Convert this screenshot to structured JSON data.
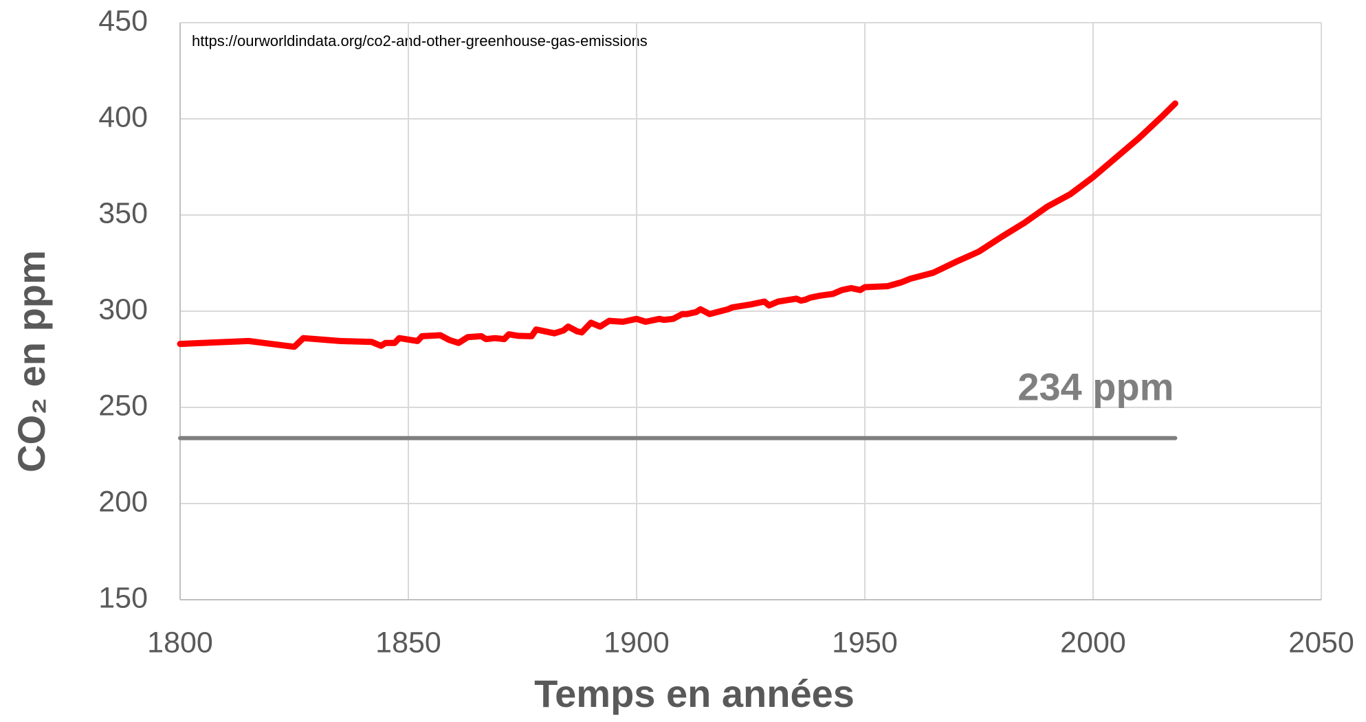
{
  "chart_data": {
    "type": "line",
    "source": "https://ourworldindata.org/co2-and-other-greenhouse-gas-emissions",
    "xlabel": "Temps en années",
    "ylabel": "CO₂ en ppm",
    "annotation": "234 ppm",
    "xlim": [
      1800,
      2050
    ],
    "xticks": [
      1800,
      1850,
      1900,
      1950,
      2000,
      2050
    ],
    "ylim": [
      150,
      450
    ],
    "yticks": [
      150,
      200,
      250,
      300,
      350,
      400,
      450
    ],
    "grid": true,
    "series": [
      {
        "color": "#ff0000",
        "x": [
          1800,
          1815,
          1825,
          1827,
          1835,
          1842,
          1844,
          1845,
          1847,
          1848,
          1852,
          1853,
          1857,
          1859,
          1861,
          1863,
          1866,
          1867,
          1869,
          1871,
          1872,
          1874,
          1877,
          1878,
          1882,
          1884,
          1885,
          1887,
          1888,
          1890,
          1892,
          1894,
          1897,
          1900,
          1902,
          1905,
          1906,
          1908,
          1910,
          1911,
          1913,
          1914,
          1916,
          1920,
          1921,
          1925,
          1928,
          1929,
          1931,
          1935,
          1936,
          1937,
          1938,
          1940,
          1943,
          1945,
          1947,
          1949,
          1950,
          1955,
          1958,
          1960,
          1965,
          1970,
          1975,
          1980,
          1985,
          1990,
          1995,
          2000,
          2005,
          2010,
          2015,
          2018
        ],
        "values": [
          283,
          284.5,
          281.5,
          286,
          284.5,
          284,
          282,
          283.5,
          283.5,
          286,
          284.5,
          287,
          287.5,
          285,
          283.5,
          286.5,
          287,
          285.5,
          286,
          285.5,
          288,
          287.2,
          287,
          290.5,
          288.5,
          290,
          292,
          289.5,
          289,
          294,
          292,
          295,
          294.5,
          296,
          294.5,
          296,
          295.5,
          296,
          298.5,
          298.5,
          299.5,
          301,
          298.5,
          301,
          302,
          303.5,
          305,
          303,
          305,
          306.5,
          305.5,
          306,
          307,
          308,
          309,
          311,
          312,
          311,
          312.5,
          313,
          315,
          316.9,
          320,
          325.7,
          331,
          338.7,
          346,
          354.4,
          360.8,
          369.7,
          379.8,
          389.9,
          401,
          408
        ]
      },
      {
        "color": "#7f7f7f",
        "x": [
          1800,
          2018
        ],
        "values": [
          234,
          234
        ]
      }
    ]
  }
}
